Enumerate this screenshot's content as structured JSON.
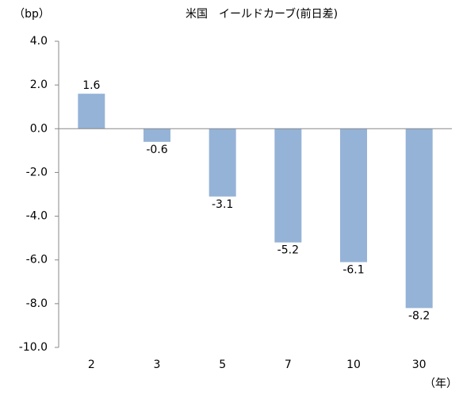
{
  "chart_data": {
    "type": "bar",
    "title": "米国　イールドカーブ(前日差)",
    "y_label": "（bp）",
    "x_label": "（年）",
    "categories": [
      "2",
      "3",
      "5",
      "7",
      "10",
      "30"
    ],
    "values": [
      1.6,
      -0.6,
      -3.1,
      -5.2,
      -6.1,
      -8.2
    ],
    "color": "#95b3d7",
    "ylim": [
      -10,
      4
    ],
    "yticks": [
      {
        "value": -10,
        "label": "-10.0"
      },
      {
        "value": -8,
        "label": "-8.0"
      },
      {
        "value": -6,
        "label": "-6.0"
      },
      {
        "value": -4,
        "label": "-4.0"
      },
      {
        "value": -2,
        "label": "-2.0"
      },
      {
        "value": 0,
        "label": "0.0"
      },
      {
        "value": 2,
        "label": "2.0"
      },
      {
        "value": 4,
        "label": "4.0"
      }
    ],
    "grid": false
  }
}
